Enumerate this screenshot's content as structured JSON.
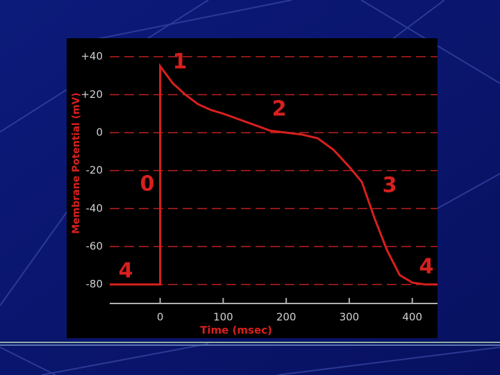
{
  "chart_data": {
    "type": "line",
    "x_label": "Time (msec)",
    "y_label": "Membrane Potential (mV)",
    "x": [
      -80,
      0,
      0,
      20,
      40,
      60,
      80,
      100,
      125,
      150,
      175,
      200,
      225,
      250,
      275,
      300,
      320,
      340,
      360,
      380,
      400,
      420,
      440
    ],
    "series": [
      {
        "color": "#d8201e",
        "values": [
          -80,
          -80,
          35,
          26,
          20,
          15,
          12,
          10,
          7,
          4,
          1,
          0,
          -1,
          -3,
          -9,
          -18,
          -26,
          -45,
          -62,
          -75,
          -79,
          -80,
          -80
        ]
      }
    ],
    "xlim": [
      -80,
      440
    ],
    "xticks": [
      0,
      100,
      200,
      300,
      400
    ],
    "ylim": [
      -90,
      45
    ],
    "yticks": [
      {
        "value": 40,
        "label": "+40"
      },
      {
        "value": 20,
        "label": "+20"
      },
      0,
      -20,
      -40,
      -60,
      -80
    ],
    "grid": true,
    "annotations": [
      "1",
      "2",
      "0",
      "3",
      "4",
      "4"
    ]
  }
}
